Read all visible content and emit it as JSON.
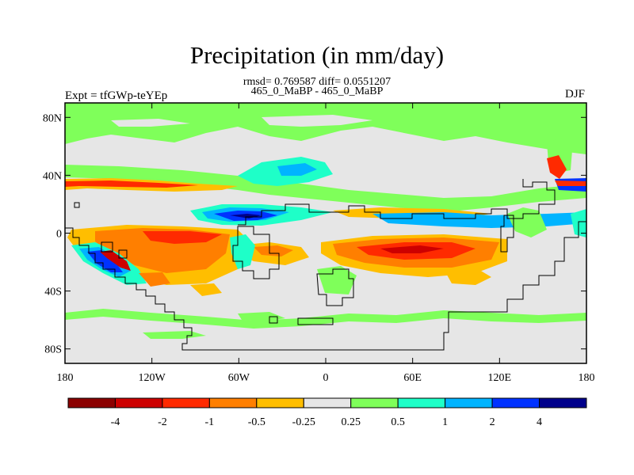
{
  "header": {
    "title": "Precipitation (in mm/day)",
    "stats": "rmsd= 0.769587 diff= 0.0551207",
    "cases": "465_0_MaBP - 465_0_MaBP",
    "experiment": "Expt = tfGWp-teYEp",
    "season": "DJF"
  },
  "map": {
    "lon_range": [
      -180,
      180
    ],
    "lat_range": [
      -90,
      90
    ],
    "lat_ticks": [
      {
        "value": 80,
        "label": "80N"
      },
      {
        "value": 40,
        "label": "40N"
      },
      {
        "value": 0,
        "label": "0"
      },
      {
        "value": -40,
        "label": "40S"
      },
      {
        "value": -80,
        "label": "80S"
      }
    ],
    "lon_ticks": [
      {
        "value": -180,
        "label": "180"
      },
      {
        "value": -120,
        "label": "120W"
      },
      {
        "value": -60,
        "label": "60W"
      },
      {
        "value": 0,
        "label": "0"
      },
      {
        "value": 60,
        "label": "60E"
      },
      {
        "value": 120,
        "label": "120E"
      },
      {
        "value": 180,
        "label": "180"
      }
    ],
    "background_color": "#e6e6e6"
  },
  "colorbar": {
    "colors": [
      "#8b0000",
      "#cd0000",
      "#ff2a00",
      "#ff7f00",
      "#ffbe00",
      "#e6e6e6",
      "#7fff5a",
      "#1effc8",
      "#00b4ff",
      "#0032ff",
      "#00008b"
    ],
    "labels": [
      "-4",
      "-2",
      "-1",
      "-0.5",
      "-0.25",
      "0.25",
      "0.5",
      "1",
      "2",
      "4"
    ]
  }
}
